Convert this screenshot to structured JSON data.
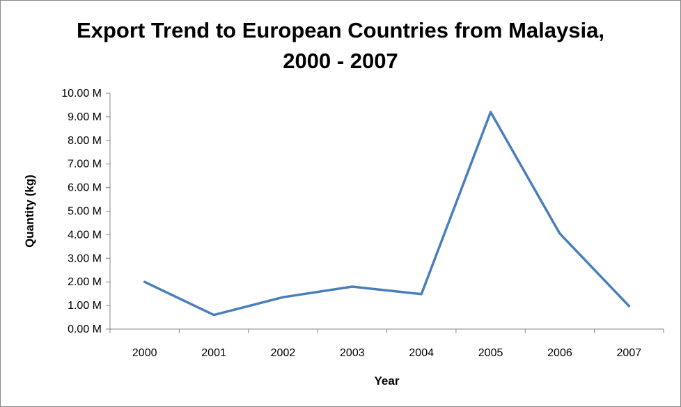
{
  "chart_data": {
    "type": "line",
    "title_line1": "Export Trend to European Countries from Malaysia,",
    "title_line2": "2000 - 2007",
    "xlabel": "Year",
    "ylabel": "Quantity (kg)",
    "categories": [
      "2000",
      "2001",
      "2002",
      "2003",
      "2004",
      "2005",
      "2006",
      "2007"
    ],
    "series": [
      {
        "name": "Quantity (kg)",
        "values": [
          2.0,
          0.6,
          1.35,
          1.8,
          1.48,
          9.2,
          4.05,
          0.98
        ],
        "color": "#4a7ebb"
      }
    ],
    "ylim": [
      0,
      10
    ],
    "ytick_step": 1,
    "ytick_labels": [
      "0.00 M",
      "1.00 M",
      "2.00 M",
      "3.00 M",
      "4.00 M",
      "5.00 M",
      "6.00 M",
      "7.00 M",
      "8.00 M",
      "9.00 M",
      "10.00 M"
    ],
    "grid": false,
    "legend": "none"
  }
}
